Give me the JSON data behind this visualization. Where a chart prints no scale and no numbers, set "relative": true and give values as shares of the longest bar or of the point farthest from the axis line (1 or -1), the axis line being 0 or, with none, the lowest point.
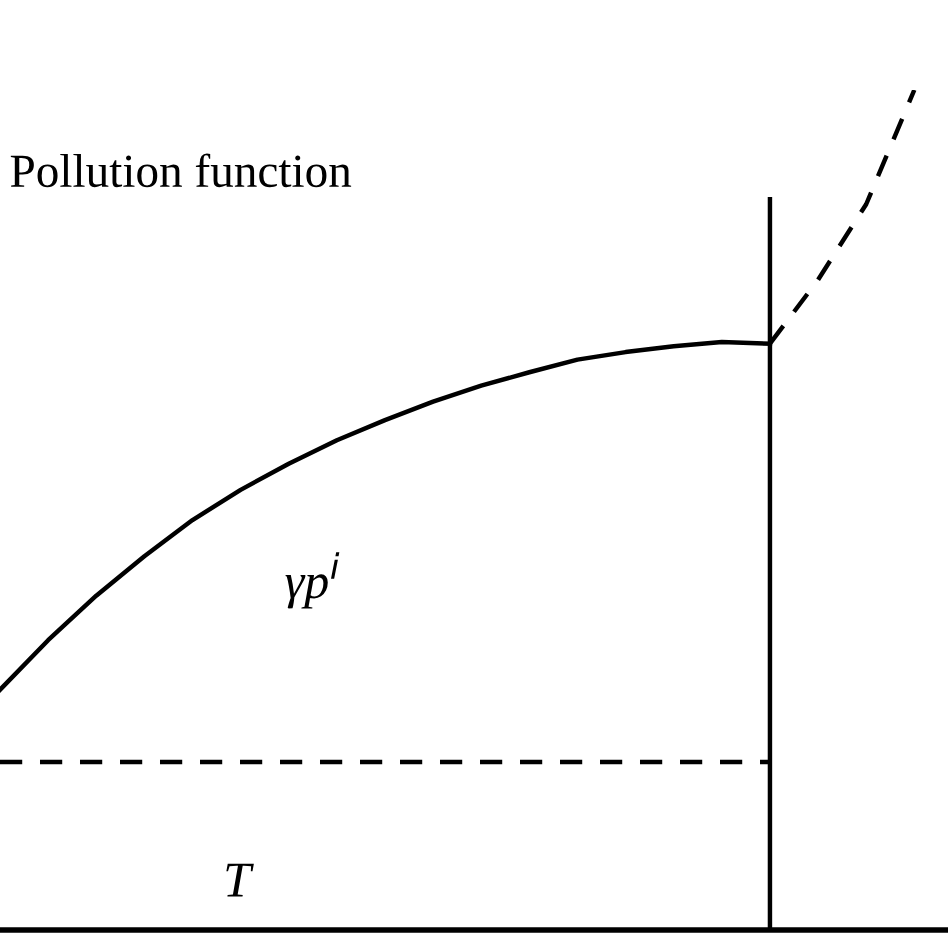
{
  "chart_data": {
    "type": "line",
    "relative": true,
    "ylabel": "Pollution function",
    "categories": [
      null,
      null,
      null,
      null,
      null,
      null,
      null,
      null,
      null,
      null,
      null,
      null,
      null,
      null,
      null,
      null,
      null,
      null,
      null,
      null
    ],
    "series": [
      {
        "color": "#000000",
        "line_style": "solid",
        "values": [
          0.286,
          0.345,
          0.398,
          0.445,
          0.488,
          0.524,
          0.555,
          0.583,
          0.607,
          0.629,
          0.648,
          0.664,
          0.679,
          0.688,
          0.695,
          0.7,
          0.698,
          null,
          null,
          null
        ]
      },
      {
        "color": "#000000",
        "line_style": "dashed",
        "values": [
          null,
          null,
          null,
          null,
          null,
          null,
          null,
          null,
          null,
          null,
          null,
          null,
          null,
          null,
          null,
          null,
          0.698,
          0.774,
          0.864,
          1.0
        ]
      },
      {
        "color": "#000000",
        "line_style": "dashed",
        "values": [
          0.2,
          0.2,
          0.2,
          0.2,
          0.2,
          0.2,
          0.2,
          0.2,
          0.2,
          0.2,
          0.2,
          0.2,
          0.2,
          0.2,
          0.2,
          0.2,
          0.2,
          null,
          null,
          null
        ]
      }
    ],
    "annotations": [
      "γp$^{i}$",
      "T"
    ],
    "legend": false,
    "marker": "none"
  }
}
